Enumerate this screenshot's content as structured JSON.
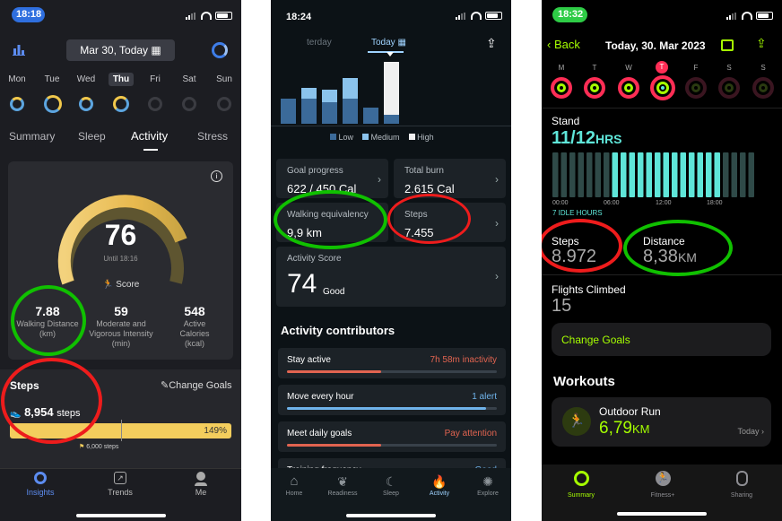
{
  "p1": {
    "status_time": "18:18",
    "date": "Mar 30, Today",
    "days": [
      "Mon",
      "Tue",
      "Wed",
      "Thu",
      "Fri",
      "Sat",
      "Sun"
    ],
    "tabs": [
      "Summary",
      "Sleep",
      "Activity",
      "Stress"
    ],
    "score": "76",
    "until": "Until 18:16",
    "score_label": "Score",
    "metrics": [
      {
        "value": "7.88",
        "label": "Walking Distance (km)"
      },
      {
        "value": "59",
        "label": "Moderate and Vigorous Intensity (min)"
      },
      {
        "value": "548",
        "label": "Active Calories (kcal)"
      }
    ],
    "steps_title": "Steps",
    "change_goals": "Change Goals",
    "steps_value": "8,954",
    "steps_unit": "steps",
    "steps_pct": "149%",
    "steps_goal": "6,000 steps",
    "steps_fraction": 1.49,
    "nav": [
      "Insights",
      "Trends",
      "Me"
    ],
    "accent": "#f3cd5d",
    "circle_green": "#10c000",
    "circle_red": "#ee1c1c"
  },
  "p2": {
    "status_time": "18:24",
    "tab_prev": "terday",
    "tab_today": "Today",
    "legend": [
      "Low",
      "Medium",
      "High"
    ],
    "cards": [
      {
        "label": "Goal progress",
        "value": "622 / 450 Cal"
      },
      {
        "label": "Total burn",
        "value": "2.615 Cal"
      },
      {
        "label": "Walking equivalency",
        "value": "9,9 km"
      },
      {
        "label": "Steps",
        "value": "7.455"
      }
    ],
    "score_label": "Activity Score",
    "score_value": "74",
    "score_word": "Good",
    "contrib_title": "Activity contributors",
    "contribs": [
      {
        "label": "Stay active",
        "status": "7h 58m inactivity",
        "color": "#e26450",
        "fill": 0.45
      },
      {
        "label": "Move every hour",
        "status": "1 alert",
        "color": "#6fb3ea",
        "fill": 0.95
      },
      {
        "label": "Meet daily goals",
        "status": "Pay attention",
        "color": "#e26450",
        "fill": 0.45
      },
      {
        "label": "Training frequency",
        "status": "Good",
        "color": "#6fb3ea",
        "fill": 0.6
      }
    ],
    "nav": [
      "Home",
      "Readiness",
      "Sleep",
      "Activity",
      "Explore"
    ]
  },
  "p3": {
    "status_time": "18:32",
    "back": "Back",
    "title": "Today, 30. Mar 2023",
    "week": [
      "M",
      "T",
      "W",
      "T",
      "F",
      "S",
      "S"
    ],
    "stand_label": "Stand",
    "stand_value": "11/12",
    "stand_unit": "HRS",
    "ticks": [
      "00:00",
      "06:00",
      "12:00",
      "18:00"
    ],
    "idle": "7 IDLE HOURS",
    "steps_label": "Steps",
    "steps_value": "8.972",
    "distance_label": "Distance",
    "distance_value": "8,38",
    "distance_unit": "KM",
    "flights_label": "Flights Climbed",
    "flights_value": "15",
    "change_goals": "Change Goals",
    "workouts": "Workouts",
    "run_label": "Outdoor Run",
    "run_value": "6,79",
    "run_unit": "KM",
    "run_when": "Today",
    "nav": [
      "Summary",
      "Fitness+",
      "Sharing"
    ],
    "accent": "#a6ff00",
    "stand_color": "#5fe6d9"
  }
}
